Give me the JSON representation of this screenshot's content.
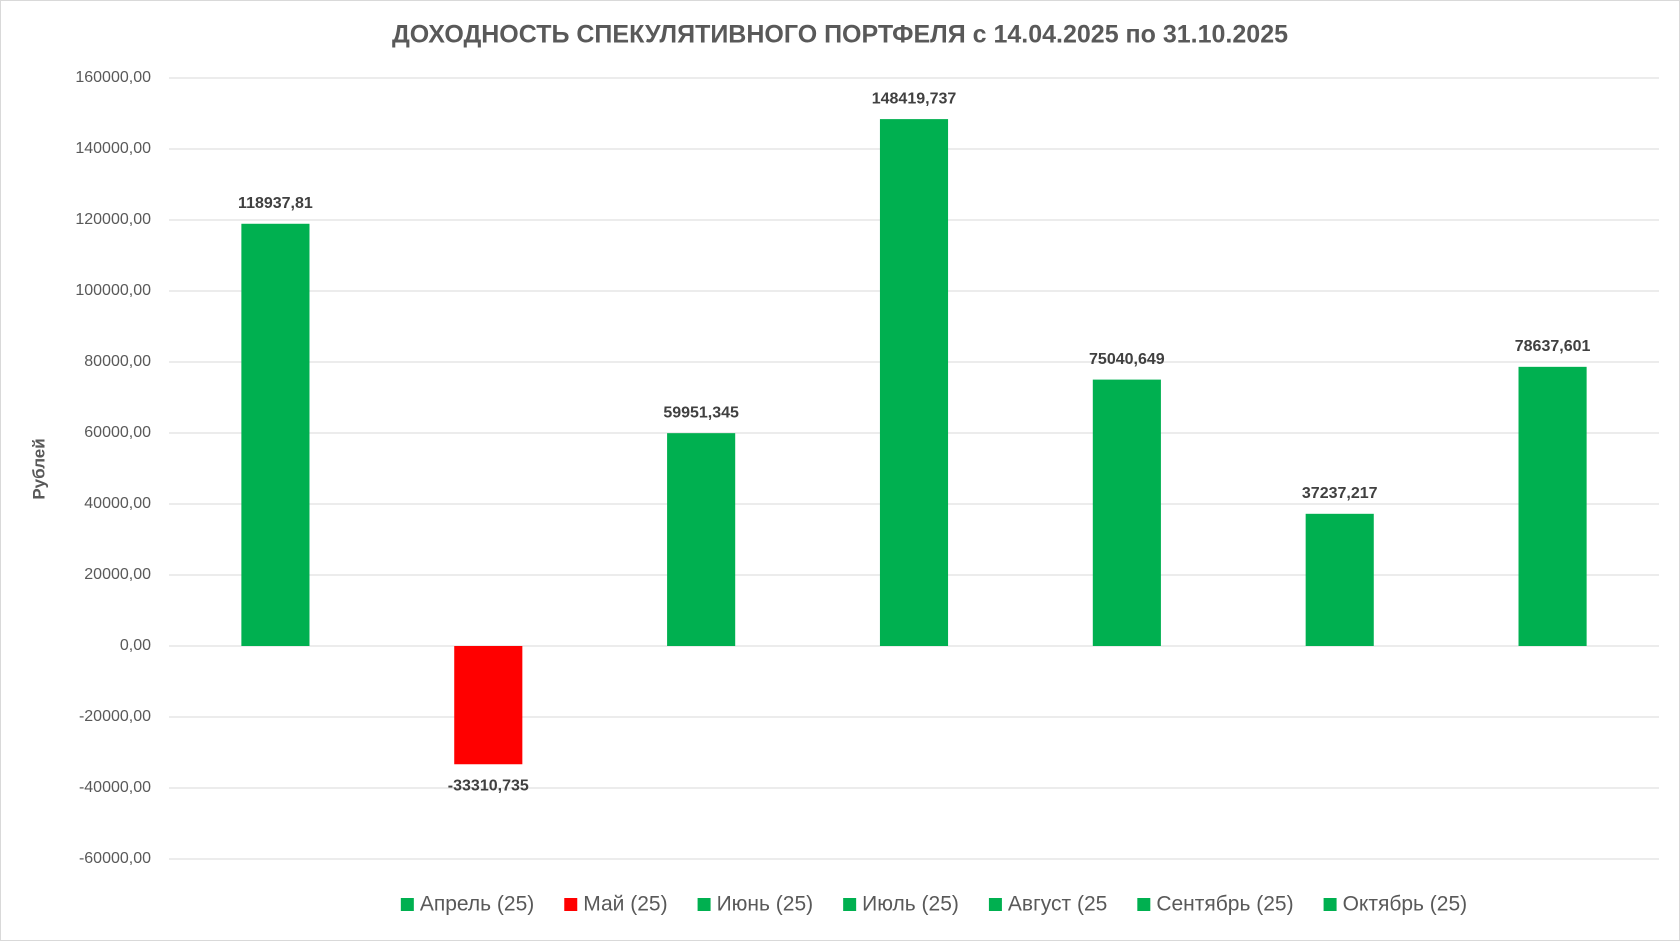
{
  "chart_data": {
    "type": "bar",
    "title": "ДОХОДНОСТЬ СПЕКУЛЯТИВНОГО ПОРТФЕЛЯ с 14.04.2025 по 31.10.2025",
    "y_label": "Рублей",
    "series": [
      {
        "name": "Апрель (25)",
        "color": "#00b050",
        "values": [
          118937.81
        ],
        "value_labels": [
          "118937,81"
        ]
      },
      {
        "name": "Май (25)",
        "color": "#ff0000",
        "values": [
          -33310.735
        ],
        "value_labels": [
          "-33310,735"
        ]
      },
      {
        "name": "Июнь (25)",
        "color": "#00b050",
        "values": [
          59951.345
        ],
        "value_labels": [
          "59951,345"
        ]
      },
      {
        "name": "Июль (25)",
        "color": "#00b050",
        "values": [
          148419.737
        ],
        "value_labels": [
          "148419,737"
        ]
      },
      {
        "name": "Август (25",
        "color": "#00b050",
        "values": [
          75040.649
        ],
        "value_labels": [
          "75040,649"
        ]
      },
      {
        "name": "Сентябрь (25)",
        "color": "#00b050",
        "values": [
          37237.217
        ],
        "value_labels": [
          "37237,217"
        ]
      },
      {
        "name": "Октябрь (25)",
        "color": "#00b050",
        "values": [
          78637.601
        ],
        "value_labels": [
          "78637,601"
        ]
      }
    ],
    "ylim": [
      -60000,
      160000
    ],
    "yticks": [
      {
        "value": -60000,
        "label": "-60000,00"
      },
      {
        "value": -40000,
        "label": "-40000,00"
      },
      {
        "value": -20000,
        "label": "-20000,00"
      },
      {
        "value": 0,
        "label": "0,00"
      },
      {
        "value": 20000,
        "label": "20000,00"
      },
      {
        "value": 40000,
        "label": "40000,00"
      },
      {
        "value": 60000,
        "label": "60000,00"
      },
      {
        "value": 80000,
        "label": "80000,00"
      },
      {
        "value": 100000,
        "label": "100000,00"
      },
      {
        "value": 120000,
        "label": "120000,00"
      },
      {
        "value": 140000,
        "label": "140000,00"
      },
      {
        "value": 160000,
        "label": "160000,00"
      }
    ],
    "grid": true,
    "legend": "bottom"
  }
}
